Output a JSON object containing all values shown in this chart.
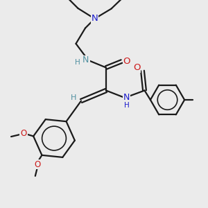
{
  "bg_color": "#ebebeb",
  "bond_color": "#1a1a1a",
  "N_color": "#1a1acc",
  "O_color": "#cc1a1a",
  "NH_color": "#5090a0",
  "line_width": 1.6,
  "figsize": [
    3.0,
    3.0
  ],
  "dpi": 100,
  "xlim": [
    0,
    10
  ],
  "ylim": [
    0,
    10
  ]
}
